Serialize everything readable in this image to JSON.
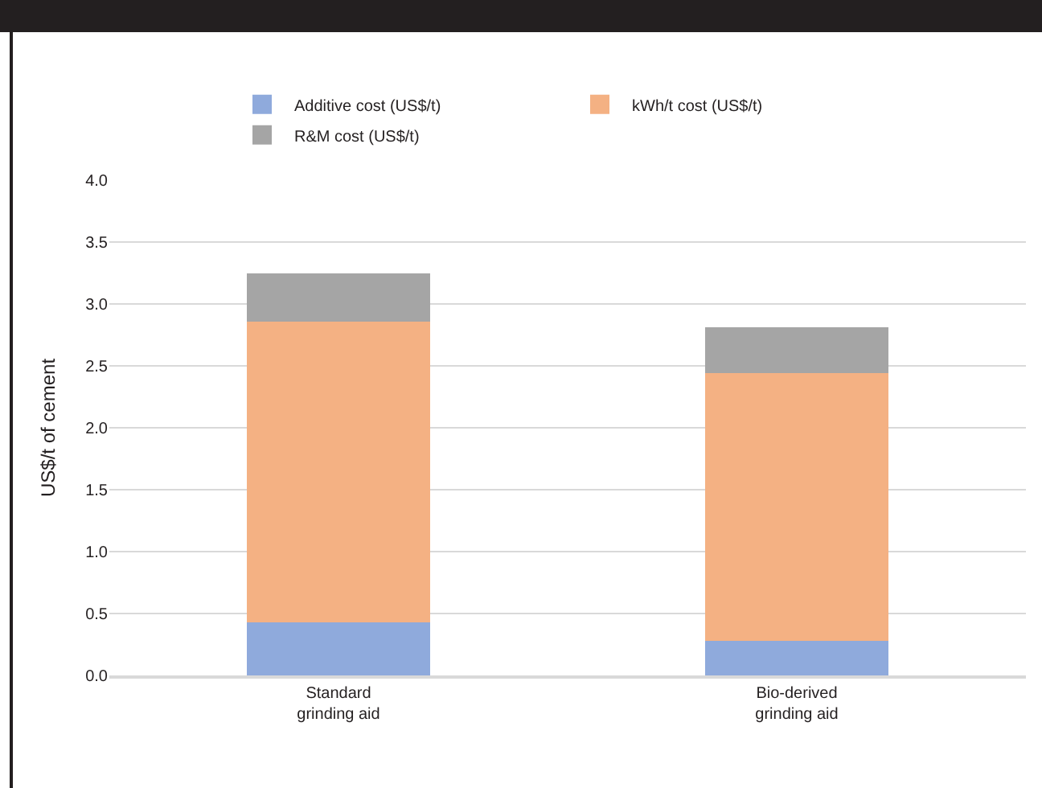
{
  "chart_data": {
    "type": "bar",
    "stacked": true,
    "ylabel": "US$/t of cement",
    "categories": [
      "Standard grinding aid",
      "Bio-derived grinding aid"
    ],
    "series": [
      {
        "name": "Additive cost (US$/t)",
        "color": "#8faadc",
        "values": [
          0.43,
          0.28
        ]
      },
      {
        "name": "kWh/t cost (US$/t)",
        "color": "#f4b183",
        "values": [
          2.43,
          2.16
        ]
      },
      {
        "name": "R&M cost (US$/t)",
        "color": "#a5a5a5",
        "values": [
          0.39,
          0.37
        ]
      }
    ],
    "ylim": [
      0,
      4.0
    ],
    "yticks": [
      {
        "value": 0,
        "label": "0.0"
      },
      {
        "value": 0.5,
        "label": "0.5"
      },
      {
        "value": 1,
        "label": "1.0"
      },
      {
        "value": 1.5,
        "label": "1.5"
      },
      {
        "value": 2,
        "label": "2.0"
      },
      {
        "value": 2.5,
        "label": "2.5"
      },
      {
        "value": 3,
        "label": "3.0"
      },
      {
        "value": 3.5,
        "label": "3.5"
      },
      {
        "value": 4,
        "label": "4.0"
      }
    ],
    "grid": "y",
    "legend": "top"
  }
}
